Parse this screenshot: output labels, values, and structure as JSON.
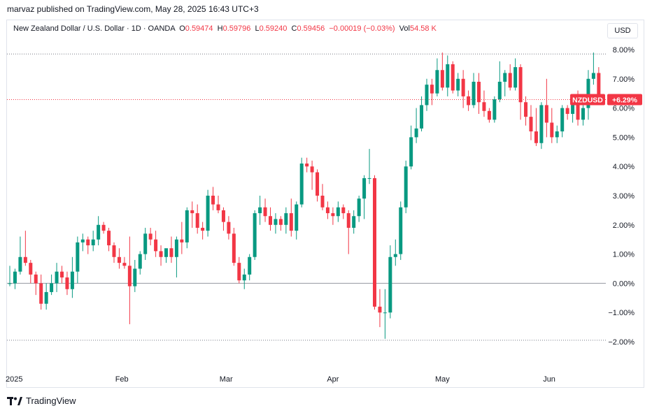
{
  "publisher": "marvaz published on TradingView.com, May 28, 2025 16:43 UTC+3",
  "legend": {
    "symbol": "New Zealand Dollar / U.S. Dollar · 1D · OANDA",
    "open_label": "O",
    "open": "0.59474",
    "high_label": "H",
    "high": "0.59796",
    "low_label": "L",
    "low": "0.59240",
    "close_label": "C",
    "close": "0.59456",
    "change": "−0.00019 (−0.03%)",
    "vol_label": "Vol",
    "vol": "54.58 K"
  },
  "currency_button": "USD",
  "price_tag": {
    "symbol": "NZDUSD",
    "value": "+6.29%"
  },
  "footer": {
    "brand": "TradingView"
  },
  "colors": {
    "up": "#089981",
    "down": "#f23645",
    "axis_text": "#131722"
  },
  "chart_data": {
    "type": "candlestick",
    "y_unit": "percent change",
    "ylim": [
      -2.4,
      8.3
    ],
    "y_ticks": [
      "8.00%",
      "7.00%",
      "6.00%",
      "5.00%",
      "4.00%",
      "3.00%",
      "2.00%",
      "1.00%",
      "0.00%",
      "−1.00%",
      "−2.00%"
    ],
    "y_tick_values": [
      8,
      7,
      6,
      5,
      4,
      3,
      2,
      1,
      0,
      -1,
      -2
    ],
    "x_labels": [
      {
        "label": "2025",
        "index": 0
      },
      {
        "label": "Feb",
        "index": 21.5
      },
      {
        "label": "Mar",
        "index": 41.5
      },
      {
        "label": "Apr",
        "index": 62
      },
      {
        "label": "May",
        "index": 83
      },
      {
        "label": "Jun",
        "index": 103.5
      }
    ],
    "reference_lines": [
      7.85,
      6.29,
      0.0,
      -1.95
    ],
    "last_value": 6.29,
    "candles": [
      [
        0.0,
        0.6,
        -0.1,
        0.0
      ],
      [
        0.0,
        0.5,
        -0.2,
        0.4
      ],
      [
        0.4,
        1.6,
        0.3,
        0.9
      ],
      [
        0.9,
        1.8,
        0.6,
        0.7
      ],
      [
        0.7,
        0.8,
        0.0,
        0.3
      ],
      [
        0.3,
        0.4,
        -0.4,
        0.0
      ],
      [
        0.0,
        0.3,
        -0.9,
        -0.7
      ],
      [
        -0.7,
        0.0,
        -0.9,
        -0.3
      ],
      [
        -0.3,
        0.3,
        -0.4,
        0.0
      ],
      [
        0.0,
        0.7,
        -0.3,
        0.4
      ],
      [
        0.4,
        0.6,
        0.0,
        0.2
      ],
      [
        0.2,
        0.4,
        -0.4,
        -0.2
      ],
      [
        -0.2,
        0.9,
        -0.5,
        0.4
      ],
      [
        0.4,
        1.6,
        0.0,
        1.4
      ],
      [
        1.4,
        1.7,
        1.1,
        1.5
      ],
      [
        1.5,
        1.6,
        1.0,
        1.3
      ],
      [
        1.3,
        1.8,
        1.1,
        1.5
      ],
      [
        1.5,
        2.3,
        1.3,
        2.0
      ],
      [
        2.0,
        2.1,
        1.7,
        1.8
      ],
      [
        1.8,
        1.9,
        1.1,
        1.3
      ],
      [
        1.3,
        1.4,
        0.7,
        0.9
      ],
      [
        0.9,
        1.2,
        0.5,
        0.7
      ],
      [
        0.7,
        0.9,
        0.5,
        0.6
      ],
      [
        0.6,
        1.6,
        -1.4,
        -0.1
      ],
      [
        -0.1,
        0.8,
        -0.3,
        0.5
      ],
      [
        0.5,
        1.1,
        0.3,
        1.0
      ],
      [
        1.0,
        1.9,
        0.8,
        1.7
      ],
      [
        1.7,
        1.9,
        1.3,
        1.5
      ],
      [
        1.5,
        1.8,
        0.9,
        1.1
      ],
      [
        1.1,
        1.3,
        0.6,
        0.9
      ],
      [
        0.9,
        1.1,
        0.7,
        1.2
      ],
      [
        1.2,
        1.6,
        0.7,
        0.9
      ],
      [
        0.9,
        1.6,
        0.2,
        1.5
      ],
      [
        1.5,
        2.1,
        1.0,
        1.4
      ],
      [
        1.4,
        2.6,
        1.2,
        2.5
      ],
      [
        2.5,
        2.8,
        1.9,
        2.4
      ],
      [
        2.4,
        2.7,
        1.7,
        1.9
      ],
      [
        1.9,
        2.1,
        1.5,
        1.8
      ],
      [
        1.8,
        3.2,
        1.6,
        3.0
      ],
      [
        3.0,
        3.3,
        2.5,
        2.7
      ],
      [
        2.7,
        3.0,
        2.4,
        2.5
      ],
      [
        2.5,
        2.6,
        1.8,
        2.1
      ],
      [
        2.1,
        2.3,
        1.5,
        1.7
      ],
      [
        1.7,
        1.9,
        0.6,
        0.7
      ],
      [
        0.7,
        0.9,
        0.0,
        0.1
      ],
      [
        0.1,
        0.5,
        -0.2,
        0.3
      ],
      [
        0.3,
        1.0,
        0.1,
        0.9
      ],
      [
        0.9,
        2.5,
        0.8,
        2.4
      ],
      [
        2.4,
        3.0,
        2.0,
        2.6
      ],
      [
        2.6,
        2.9,
        2.1,
        2.3
      ],
      [
        2.3,
        2.6,
        1.8,
        2.0
      ],
      [
        2.0,
        2.4,
        1.7,
        2.2
      ],
      [
        2.2,
        2.3,
        1.8,
        2.0
      ],
      [
        2.0,
        2.6,
        1.7,
        2.4
      ],
      [
        2.4,
        2.9,
        1.6,
        1.8
      ],
      [
        1.8,
        2.8,
        1.5,
        2.7
      ],
      [
        2.7,
        4.3,
        2.6,
        4.1
      ],
      [
        4.1,
        4.3,
        3.8,
        4.0
      ],
      [
        4.0,
        4.2,
        3.2,
        3.8
      ],
      [
        3.8,
        3.9,
        2.8,
        3.0
      ],
      [
        3.0,
        3.4,
        2.5,
        2.6
      ],
      [
        2.6,
        2.8,
        2.2,
        2.4
      ],
      [
        2.4,
        2.6,
        2.0,
        2.3
      ],
      [
        2.3,
        2.8,
        2.1,
        2.6
      ],
      [
        2.6,
        2.7,
        2.2,
        2.4
      ],
      [
        2.4,
        2.5,
        1.0,
        1.9
      ],
      [
        1.9,
        2.5,
        1.7,
        2.3
      ],
      [
        2.3,
        3.0,
        2.1,
        2.9
      ],
      [
        2.9,
        3.7,
        2.2,
        3.6
      ],
      [
        3.6,
        4.6,
        3.4,
        3.6
      ],
      [
        3.6,
        3.7,
        -0.9,
        -0.8
      ],
      [
        -0.8,
        -0.2,
        -1.5,
        -1.0
      ],
      [
        -1.0,
        -0.2,
        -1.9,
        -1.0
      ],
      [
        -1.0,
        1.3,
        -1.2,
        0.9
      ],
      [
        0.9,
        1.5,
        0.6,
        1.0
      ],
      [
        1.0,
        2.8,
        0.8,
        2.6
      ],
      [
        2.6,
        4.2,
        2.4,
        4.0
      ],
      [
        4.0,
        5.4,
        3.9,
        5.0
      ],
      [
        5.0,
        6.0,
        4.8,
        5.3
      ],
      [
        5.3,
        6.4,
        5.2,
        6.1
      ],
      [
        6.1,
        7.0,
        5.9,
        6.8
      ],
      [
        6.8,
        7.0,
        6.1,
        6.5
      ],
      [
        6.5,
        7.7,
        6.4,
        7.3
      ],
      [
        7.3,
        7.9,
        6.6,
        6.7
      ],
      [
        6.7,
        7.8,
        6.4,
        7.5
      ],
      [
        7.5,
        7.6,
        6.5,
        6.6
      ],
      [
        6.6,
        7.2,
        6.4,
        7.0
      ],
      [
        7.0,
        7.3,
        6.0,
        6.4
      ],
      [
        6.4,
        6.6,
        5.9,
        6.1
      ],
      [
        6.1,
        7.2,
        6.0,
        6.9
      ],
      [
        6.9,
        7.2,
        5.8,
        6.2
      ],
      [
        6.2,
        6.6,
        5.7,
        5.9
      ],
      [
        5.9,
        6.0,
        5.5,
        5.6
      ],
      [
        5.6,
        6.4,
        5.5,
        6.3
      ],
      [
        6.3,
        7.6,
        6.2,
        6.9
      ],
      [
        6.9,
        7.3,
        6.4,
        7.2
      ],
      [
        7.2,
        7.5,
        6.6,
        6.7
      ],
      [
        6.7,
        7.7,
        6.6,
        7.4
      ],
      [
        7.4,
        7.5,
        5.6,
        6.2
      ],
      [
        6.2,
        6.4,
        5.4,
        5.7
      ],
      [
        5.7,
        6.1,
        4.9,
        5.2
      ],
      [
        5.2,
        6.0,
        4.7,
        4.8
      ],
      [
        4.8,
        6.2,
        4.6,
        6.1
      ],
      [
        6.1,
        7.0,
        5.0,
        5.5
      ],
      [
        5.5,
        6.0,
        4.8,
        5.0
      ],
      [
        5.0,
        5.4,
        4.8,
        5.2
      ],
      [
        5.2,
        6.1,
        5.0,
        6.0
      ],
      [
        6.0,
        6.1,
        5.6,
        5.8
      ],
      [
        5.8,
        6.3,
        5.5,
        6.1
      ],
      [
        6.1,
        6.6,
        5.4,
        5.6
      ],
      [
        5.6,
        6.2,
        5.4,
        6.0
      ],
      [
        6.0,
        7.3,
        5.6,
        7.0
      ],
      [
        7.0,
        7.9,
        6.8,
        7.2
      ],
      [
        7.2,
        7.4,
        6.2,
        6.3
      ],
      [
        6.3,
        6.9,
        6.0,
        6.29
      ]
    ]
  }
}
